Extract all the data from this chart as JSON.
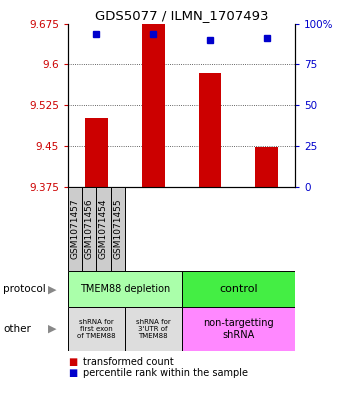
{
  "title": "GDS5077 / ILMN_1707493",
  "samples": [
    "GSM1071457",
    "GSM1071456",
    "GSM1071454",
    "GSM1071455"
  ],
  "bar_values": [
    9.502,
    9.675,
    9.585,
    9.448
  ],
  "bar_base": 9.375,
  "blue_dot_values": [
    9.655,
    9.655,
    9.645,
    9.648
  ],
  "ylim": [
    9.375,
    9.675
  ],
  "yticks_left": [
    9.375,
    9.45,
    9.525,
    9.6,
    9.675
  ],
  "yticks_right": [
    0,
    25,
    50,
    75,
    100
  ],
  "ytick_labels_right": [
    "0",
    "25",
    "50",
    "75",
    "100%"
  ],
  "bar_color": "#cc0000",
  "dot_color": "#0000cc",
  "protocol_labels": [
    "TMEM88 depletion",
    "control"
  ],
  "protocol_colors": [
    "#aaffaa",
    "#44ee44"
  ],
  "other_labels_col0": "shRNA for\nfirst exon\nof TMEM88",
  "other_labels_col1": "shRNA for\n3'UTR of\nTMEM88",
  "other_labels_col23": "non-targetting\nshRNA",
  "other_color_01": "#dddddd",
  "other_color_23": "#ff88ff",
  "sample_box_color": "#cccccc",
  "legend_text1": "transformed count",
  "legend_text2": "percentile rank within the sample",
  "bg_color": "#ffffff"
}
